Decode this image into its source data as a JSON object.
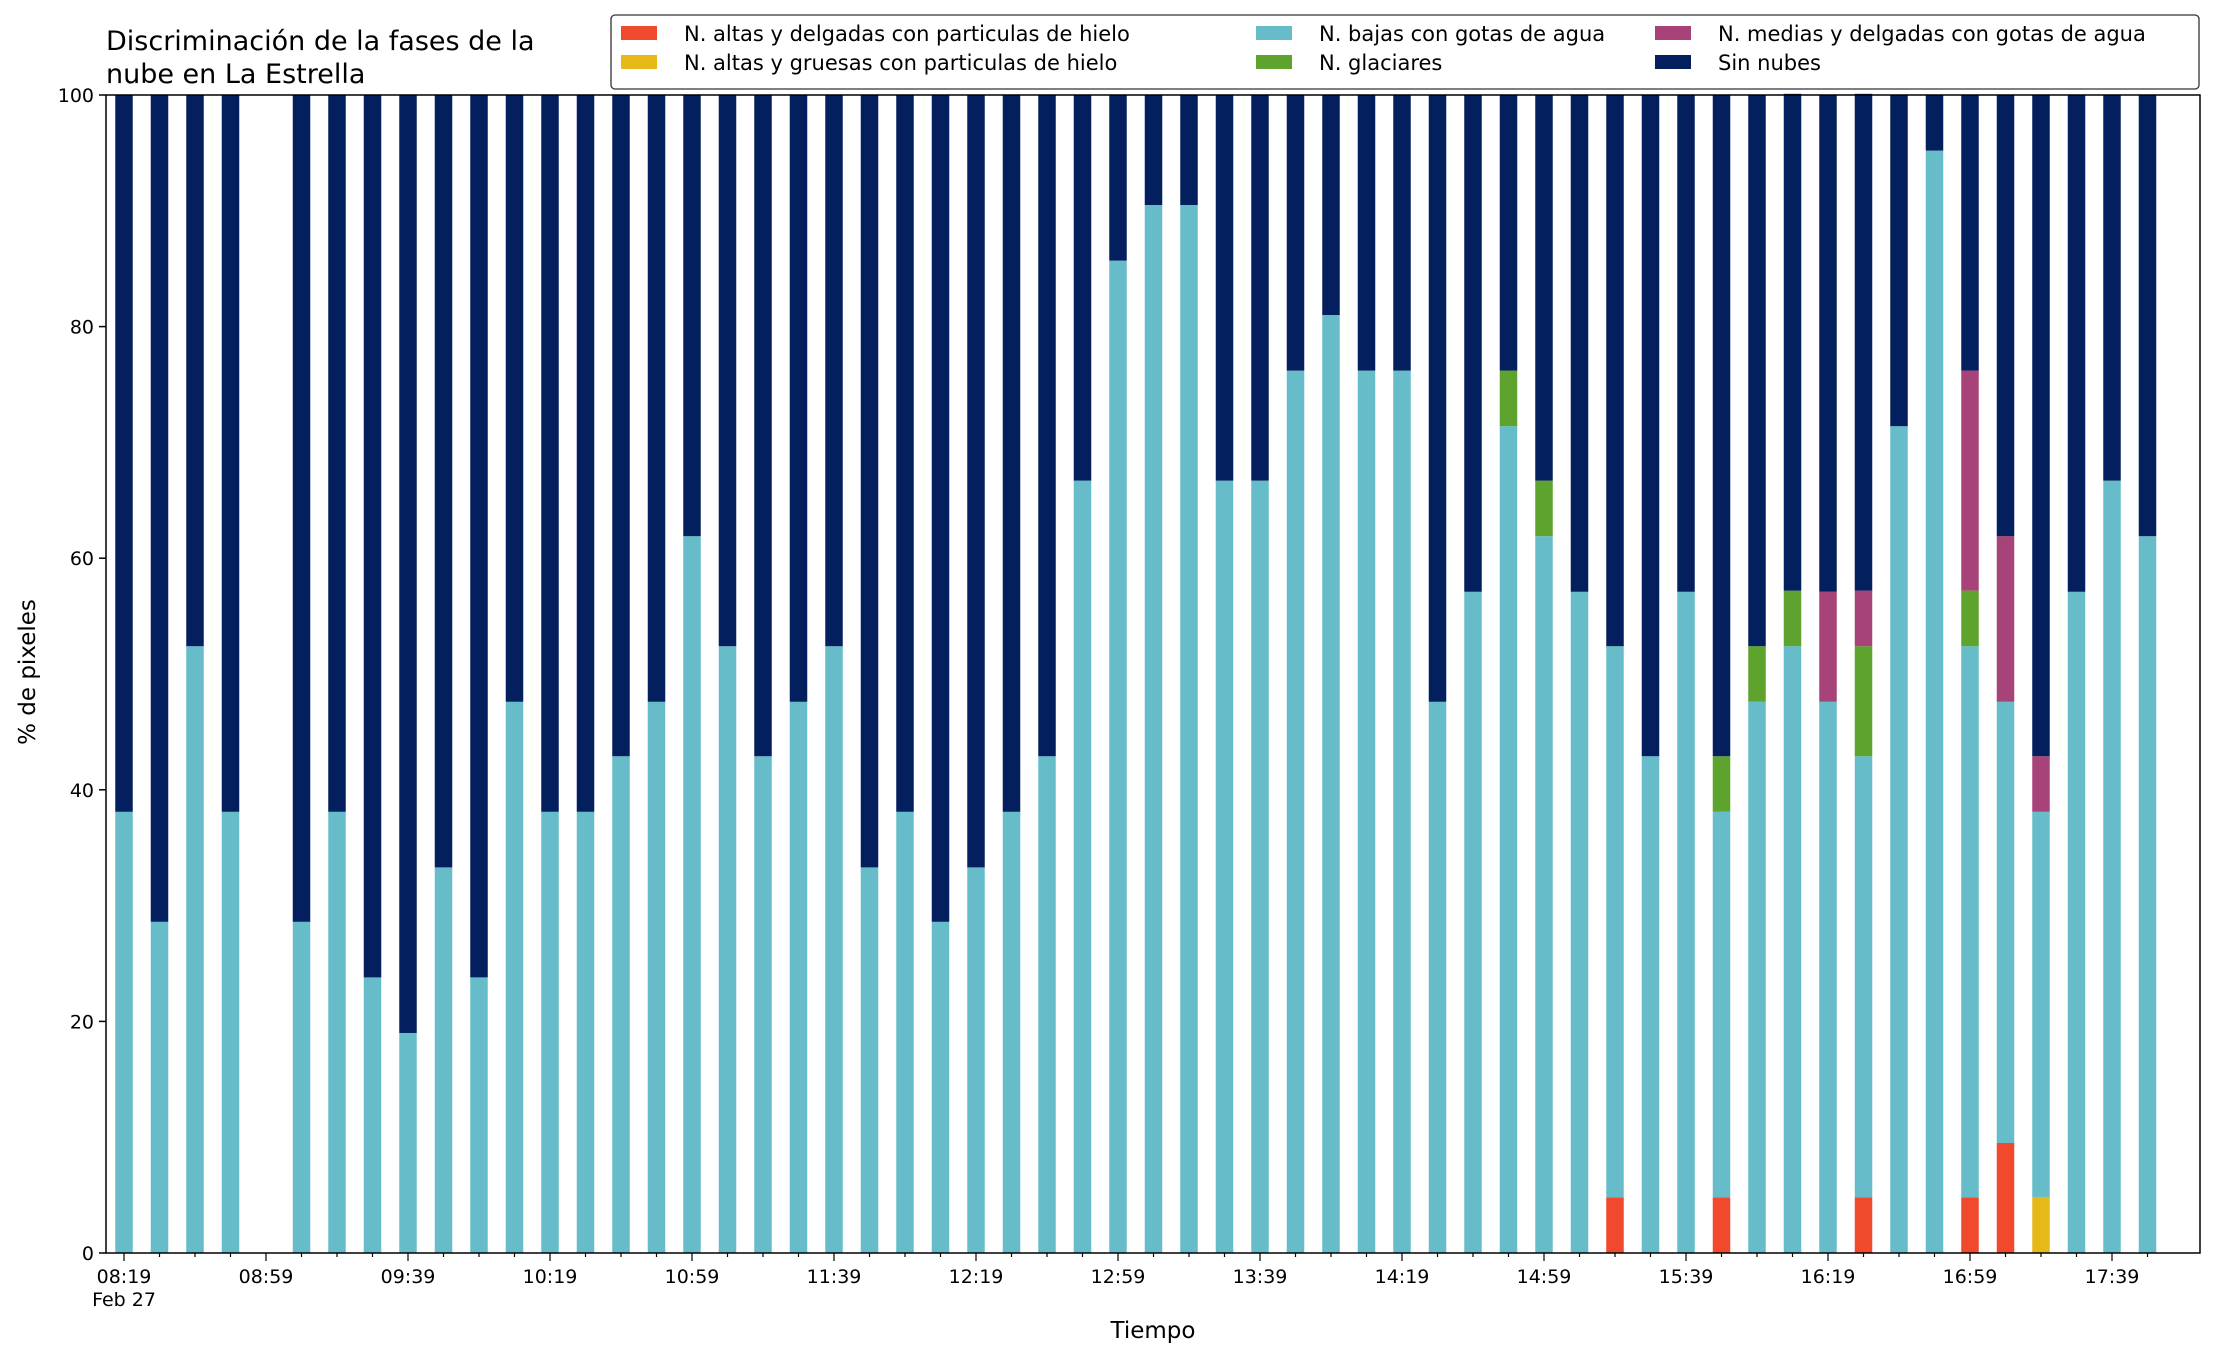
{
  "chart_data": {
    "type": "bar",
    "stacked": true,
    "title_lines": [
      "Discriminación de la fases de la",
      "nube en La Estrella"
    ],
    "xlabel": "Tiempo",
    "ylabel": "% de pixeles",
    "ylim": [
      0,
      100
    ],
    "yticks": [
      0,
      20,
      40,
      60,
      80,
      100
    ],
    "x_start": "08:19",
    "x_interval_minutes": 10,
    "xtick_labels": [
      "08:19",
      "08:59",
      "09:39",
      "10:19",
      "10:59",
      "11:39",
      "12:19",
      "12:59",
      "13:39",
      "14:19",
      "14:59",
      "15:39",
      "16:19",
      "16:59",
      "17:39"
    ],
    "xtick_sublabel": "Feb 27",
    "grid": false,
    "legend_position": "top-right",
    "legend_columns": 3,
    "categories": [
      "08:19",
      "08:29",
      "08:39",
      "08:49",
      "08:59",
      "09:09",
      "09:19",
      "09:29",
      "09:39",
      "09:49",
      "09:59",
      "10:09",
      "10:19",
      "10:29",
      "10:39",
      "10:49",
      "10:59",
      "11:09",
      "11:19",
      "11:29",
      "11:39",
      "11:49",
      "11:59",
      "12:09",
      "12:19",
      "12:29",
      "12:39",
      "12:49",
      "12:59",
      "13:09",
      "13:19",
      "13:29",
      "13:39",
      "13:49",
      "13:59",
      "14:09",
      "14:19",
      "14:29",
      "14:39",
      "14:49",
      "14:59",
      "15:09",
      "15:19",
      "15:29",
      "15:39",
      "15:49",
      "15:59",
      "16:09",
      "16:19",
      "16:29",
      "16:39",
      "16:49",
      "16:59",
      "17:09",
      "17:19",
      "17:29",
      "17:39",
      "17:49"
    ],
    "series": [
      {
        "name": "N. altas y delgadas con particulas de hielo",
        "color": "#f0492e",
        "values": [
          0,
          0,
          0,
          0,
          0,
          0,
          0,
          0,
          0,
          0,
          0,
          0,
          0,
          0,
          0,
          0,
          0,
          0,
          0,
          0,
          0,
          0,
          0,
          0,
          0,
          0,
          0,
          0,
          0,
          0,
          0,
          0,
          0,
          0,
          0,
          0,
          0,
          0,
          0,
          0,
          0,
          0,
          4.8,
          0,
          0,
          4.8,
          0,
          0,
          0,
          4.8,
          0,
          0,
          4.8,
          9.5,
          0,
          0,
          0,
          0
        ]
      },
      {
        "name": "N. altas y gruesas con particulas de hielo",
        "color": "#e6b818",
        "values": [
          0,
          0,
          0,
          0,
          0,
          0,
          0,
          0,
          0,
          0,
          0,
          0,
          0,
          0,
          0,
          0,
          0,
          0,
          0,
          0,
          0,
          0,
          0,
          0,
          0,
          0,
          0,
          0,
          0,
          0,
          0,
          0,
          0,
          0,
          0,
          0,
          0,
          0,
          0,
          0,
          0,
          0,
          0,
          0,
          0,
          0,
          0,
          0,
          0,
          0,
          0,
          0,
          0,
          0,
          4.8,
          0,
          0,
          0
        ]
      },
      {
        "name": "N. bajas con gotas de agua",
        "color": "#66bdc9",
        "values": [
          38.1,
          28.6,
          52.4,
          38.1,
          0,
          28.6,
          38.1,
          23.8,
          19.0,
          33.3,
          23.8,
          47.6,
          38.1,
          38.1,
          42.9,
          47.6,
          61.9,
          52.4,
          42.9,
          47.6,
          52.4,
          33.3,
          38.1,
          28.6,
          33.3,
          38.1,
          42.9,
          66.7,
          85.7,
          90.5,
          90.5,
          66.7,
          66.7,
          76.2,
          81.0,
          76.2,
          76.2,
          47.6,
          57.1,
          71.4,
          61.9,
          57.1,
          47.6,
          42.9,
          57.1,
          33.3,
          47.6,
          52.4,
          47.6,
          38.1,
          71.4,
          95.2,
          47.6,
          38.1,
          33.3,
          57.1,
          66.7,
          61.9
        ]
      },
      {
        "name": "N. glaciares",
        "color": "#5ea32d",
        "values": [
          0,
          0,
          0,
          0,
          0,
          0,
          0,
          0,
          0,
          0,
          0,
          0,
          0,
          0,
          0,
          0,
          0,
          0,
          0,
          0,
          0,
          0,
          0,
          0,
          0,
          0,
          0,
          0,
          0,
          0,
          0,
          0,
          0,
          0,
          0,
          0,
          0,
          0,
          0,
          4.8,
          4.8,
          0,
          0,
          0,
          0,
          4.8,
          4.8,
          4.8,
          0,
          9.5,
          0,
          0,
          4.8,
          0,
          0,
          0,
          0,
          0
        ]
      },
      {
        "name": "N. medias y delgadas con gotas de agua",
        "color": "#a84379",
        "values": [
          0,
          0,
          0,
          0,
          0,
          0,
          0,
          0,
          0,
          0,
          0,
          0,
          0,
          0,
          0,
          0,
          0,
          0,
          0,
          0,
          0,
          0,
          0,
          0,
          0,
          0,
          0,
          0,
          0,
          0,
          0,
          0,
          0,
          0,
          0,
          0,
          0,
          0,
          0,
          0,
          0,
          0,
          0,
          0,
          0,
          0,
          0,
          0,
          9.5,
          4.8,
          0,
          0,
          19.0,
          14.3,
          4.8,
          0,
          0,
          0
        ]
      },
      {
        "name": "Sin nubes",
        "color": "#031f5e",
        "values": [
          61.9,
          71.4,
          47.6,
          61.9,
          0,
          71.4,
          61.9,
          76.2,
          81.0,
          66.7,
          76.2,
          52.4,
          61.9,
          61.9,
          57.1,
          52.4,
          38.1,
          47.6,
          57.1,
          52.4,
          47.6,
          66.7,
          61.9,
          71.4,
          66.7,
          61.9,
          57.1,
          33.3,
          14.3,
          9.5,
          9.5,
          33.3,
          33.3,
          23.8,
          19.0,
          23.8,
          23.8,
          52.4,
          42.9,
          23.8,
          33.3,
          42.9,
          47.6,
          57.1,
          42.9,
          57.1,
          47.6,
          42.9,
          42.9,
          42.9,
          28.6,
          4.8,
          23.8,
          38.1,
          57.1,
          42.9,
          33.3,
          38.1
        ]
      }
    ]
  }
}
